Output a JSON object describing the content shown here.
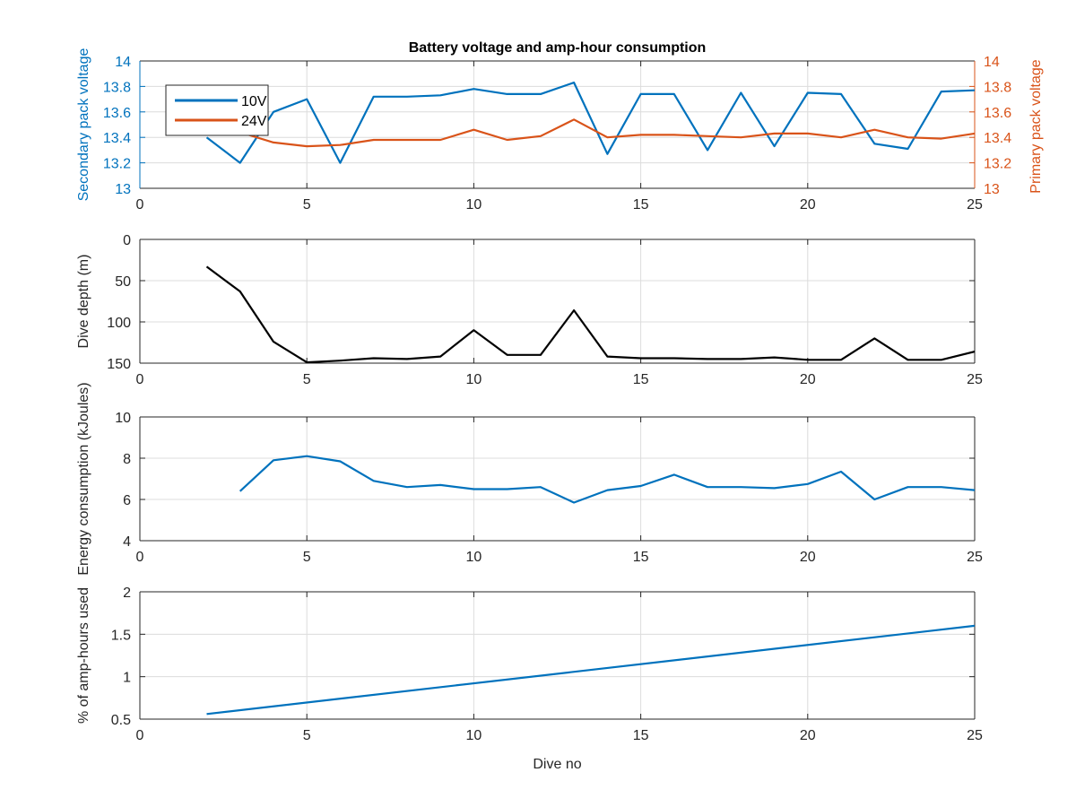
{
  "colors": {
    "blue": "#0072BD",
    "orange": "#D95319",
    "black": "#000000",
    "grid": "#DCDCDC",
    "axis": "#262626"
  },
  "chart_data": [
    {
      "type": "line",
      "title": "Battery voltage and amp-hour consumption",
      "xlabel": "",
      "ylabel": "Secondary pack voltage",
      "ylabel_right": "Primary pack voltage",
      "xlim": [
        0,
        25
      ],
      "ylim": [
        13,
        14
      ],
      "ylim_right": [
        13,
        14
      ],
      "xticks": [
        "0",
        "5",
        "10",
        "15",
        "20",
        "25"
      ],
      "yticks": [
        "13",
        "13.2",
        "13.4",
        "13.6",
        "13.8",
        "14"
      ],
      "yticks_right": [
        "13",
        "13.2",
        "13.4",
        "13.6",
        "13.8",
        "14"
      ],
      "grid": true,
      "legend": "top-left",
      "series": [
        {
          "name": "10V",
          "axis": "left",
          "color": "#0072BD",
          "x": [
            2,
            3,
            4,
            5,
            6,
            7,
            8,
            9,
            10,
            11,
            12,
            13,
            14,
            15,
            16,
            17,
            18,
            19,
            20,
            21,
            22,
            23,
            24,
            25
          ],
          "y": [
            13.4,
            13.2,
            13.6,
            13.7,
            13.2,
            13.72,
            13.72,
            13.73,
            13.78,
            13.74,
            13.74,
            13.83,
            13.27,
            13.74,
            13.74,
            13.3,
            13.75,
            13.33,
            13.75,
            13.74,
            13.35,
            13.31,
            13.76,
            13.77
          ]
        },
        {
          "name": "24V",
          "axis": "right",
          "color": "#D95319",
          "x": [
            3,
            4,
            5,
            6,
            7,
            8,
            9,
            10,
            11,
            12,
            13,
            14,
            15,
            16,
            17,
            18,
            19,
            20,
            21,
            22,
            23,
            24,
            25
          ],
          "y": [
            13.44,
            13.36,
            13.33,
            13.34,
            13.38,
            13.38,
            13.38,
            13.46,
            13.38,
            13.41,
            13.54,
            13.4,
            13.42,
            13.42,
            13.41,
            13.4,
            13.43,
            13.43,
            13.4,
            13.46,
            13.4,
            13.39,
            13.43
          ]
        }
      ]
    },
    {
      "type": "line",
      "title": "",
      "xlabel": "",
      "ylabel": "Dive depth (m)",
      "xlim": [
        0,
        25
      ],
      "ylim": [
        0,
        150
      ],
      "y_reversed": true,
      "xticks": [
        "0",
        "5",
        "10",
        "15",
        "20",
        "25"
      ],
      "yticks": [
        "0",
        "50",
        "100",
        "150"
      ],
      "grid": true,
      "series": [
        {
          "color": "#000000",
          "x": [
            2,
            3,
            4,
            5,
            6,
            7,
            8,
            9,
            10,
            11,
            12,
            13,
            14,
            15,
            16,
            17,
            18,
            19,
            20,
            21,
            22,
            23,
            24,
            25
          ],
          "y": [
            33,
            63,
            124,
            149,
            147,
            144,
            145,
            142,
            110,
            140,
            140,
            86,
            142,
            144,
            144,
            145,
            145,
            143,
            146,
            146,
            120,
            146,
            146,
            136
          ]
        }
      ]
    },
    {
      "type": "line",
      "title": "",
      "xlabel": "",
      "ylabel": "Energy consumption (kJoules)",
      "xlim": [
        0,
        25
      ],
      "ylim": [
        4,
        10
      ],
      "xticks": [
        "0",
        "5",
        "10",
        "15",
        "20",
        "25"
      ],
      "yticks": [
        "4",
        "6",
        "8",
        "10"
      ],
      "grid": true,
      "series": [
        {
          "color": "#0072BD",
          "x": [
            3,
            4,
            5,
            6,
            7,
            8,
            9,
            10,
            11,
            12,
            13,
            14,
            15,
            16,
            17,
            18,
            19,
            20,
            21,
            22,
            23,
            24,
            25
          ],
          "y": [
            6.4,
            7.9,
            8.1,
            7.85,
            6.9,
            6.6,
            6.7,
            6.5,
            6.5,
            6.6,
            5.85,
            6.45,
            6.65,
            7.2,
            6.6,
            6.6,
            6.55,
            6.75,
            7.35,
            6.0,
            6.6,
            6.6,
            6.45
          ]
        }
      ]
    },
    {
      "type": "line",
      "title": "",
      "xlabel": "Dive no",
      "ylabel": "% of amp-hours used",
      "xlim": [
        0,
        25
      ],
      "ylim": [
        0.5,
        2
      ],
      "xticks": [
        "0",
        "5",
        "10",
        "15",
        "20",
        "25"
      ],
      "yticks": [
        "0.5",
        "1",
        "1.5",
        "2"
      ],
      "grid": true,
      "series": [
        {
          "color": "#0072BD",
          "x": [
            2,
            25
          ],
          "y": [
            0.56,
            1.6
          ]
        }
      ]
    }
  ]
}
